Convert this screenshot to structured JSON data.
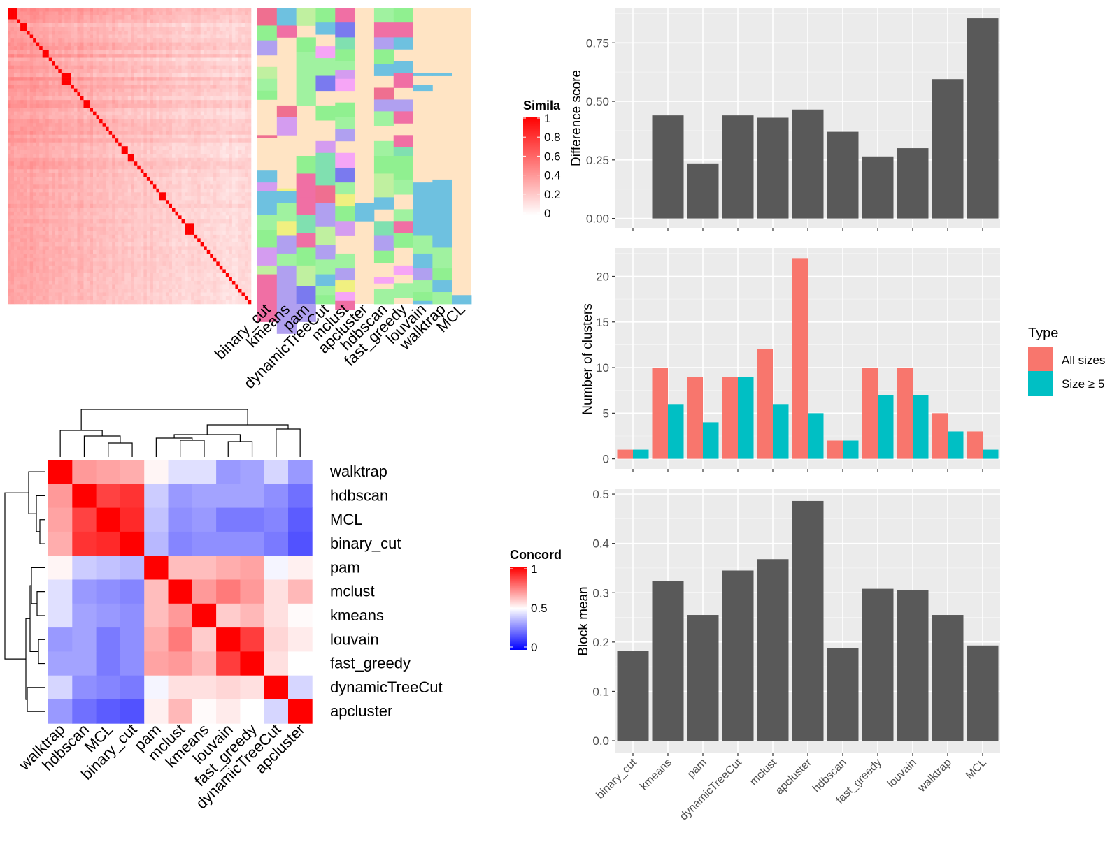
{
  "colors": {
    "panel_bg": "#ebebeb",
    "bar_dark": "#595959",
    "all_sizes": "#f8766d",
    "size_ge5": "#00bfc4",
    "heat_red": "#ff0000",
    "heat_blue": "#0000ff",
    "annot_bg": "#ffe4c4"
  },
  "similarity_heatmap": {
    "legend_title": "Simila",
    "legend_ticks": [
      "1",
      "0.8",
      "0.6",
      "0.4",
      "0.2",
      "0"
    ],
    "diagonal_block_sizes": [
      3,
      1,
      2,
      1,
      1,
      1,
      1,
      1,
      2,
      1,
      1,
      1,
      1,
      3,
      1,
      1,
      1,
      1,
      2,
      1,
      1,
      1,
      1,
      1,
      1,
      1,
      1,
      1,
      1,
      2,
      2,
      1,
      1,
      1,
      1,
      1,
      1,
      1,
      1,
      2,
      1,
      1,
      1,
      1,
      1,
      1,
      3,
      1,
      1,
      1,
      1,
      1,
      1,
      1,
      1,
      1,
      1,
      1,
      1,
      1,
      1,
      1,
      1,
      1,
      1
    ],
    "annotation_columns": [
      "binary_cut",
      "kmeans",
      "pam",
      "dynamicTreeCut",
      "mclust",
      "apcluster",
      "hdbscan",
      "fast_greedy",
      "louvain",
      "walktrap",
      "MCL"
    ]
  },
  "concordance_heatmap": {
    "legend_title": "Concord",
    "legend_ticks": [
      "1",
      "0.5",
      "0"
    ],
    "labels": [
      "walktrap",
      "hdbscan",
      "MCL",
      "binary_cut",
      "pam",
      "mclust",
      "kmeans",
      "louvain",
      "fast_greedy",
      "dynamicTreeCut",
      "apcluster"
    ],
    "matrix": [
      [
        1.0,
        0.7,
        0.68,
        0.66,
        0.52,
        0.44,
        0.44,
        0.3,
        0.32,
        0.42,
        0.3
      ],
      [
        0.7,
        1.0,
        0.87,
        0.9,
        0.4,
        0.3,
        0.32,
        0.32,
        0.32,
        0.28,
        0.22
      ],
      [
        0.68,
        0.87,
        1.0,
        0.92,
        0.38,
        0.28,
        0.3,
        0.24,
        0.24,
        0.26,
        0.18
      ],
      [
        0.66,
        0.9,
        0.92,
        1.0,
        0.36,
        0.26,
        0.28,
        0.28,
        0.28,
        0.24,
        0.16
      ],
      [
        0.52,
        0.4,
        0.38,
        0.36,
        1.0,
        0.63,
        0.63,
        0.66,
        0.68,
        0.48,
        0.53
      ],
      [
        0.44,
        0.3,
        0.28,
        0.26,
        0.63,
        1.0,
        0.7,
        0.76,
        0.7,
        0.56,
        0.64
      ],
      [
        0.44,
        0.32,
        0.3,
        0.28,
        0.63,
        0.7,
        1.0,
        0.6,
        0.64,
        0.56,
        0.51
      ],
      [
        0.3,
        0.32,
        0.24,
        0.28,
        0.66,
        0.76,
        0.6,
        1.0,
        0.88,
        0.58,
        0.54
      ],
      [
        0.32,
        0.32,
        0.24,
        0.28,
        0.68,
        0.7,
        0.64,
        0.88,
        1.0,
        0.56,
        0.5
      ],
      [
        0.42,
        0.28,
        0.26,
        0.24,
        0.48,
        0.56,
        0.56,
        0.58,
        0.56,
        1.0,
        0.42
      ],
      [
        0.3,
        0.22,
        0.18,
        0.16,
        0.53,
        0.64,
        0.51,
        0.54,
        0.5,
        0.42,
        1.0
      ]
    ]
  },
  "chart_data": [
    {
      "type": "bar",
      "categories": [
        "binary_cut",
        "kmeans",
        "pam",
        "dynamicTreeCut",
        "mclust",
        "apcluster",
        "hdbscan",
        "fast_greedy",
        "louvain",
        "walktrap",
        "MCL"
      ],
      "values": [
        0,
        0.44,
        0.235,
        0.44,
        0.43,
        0.465,
        0.37,
        0.265,
        0.3,
        0.595,
        0.855
      ],
      "ylabel": "Difference score",
      "yticks": [
        0,
        0.25,
        0.5,
        0.75
      ],
      "ytick_labels": [
        "0.00",
        "0.25",
        "0.50",
        "0.75"
      ],
      "ylim": [
        -0.04,
        0.9
      ],
      "grid": true
    },
    {
      "type": "bar",
      "categories": [
        "binary_cut",
        "kmeans",
        "pam",
        "dynamicTreeCut",
        "mclust",
        "apcluster",
        "hdbscan",
        "fast_greedy",
        "louvain",
        "walktrap",
        "MCL"
      ],
      "series": [
        {
          "name": "All sizes",
          "values": [
            1,
            10,
            9,
            9,
            12,
            22,
            2,
            10,
            10,
            5,
            3
          ]
        },
        {
          "name": "Size ≥ 5",
          "values": [
            1,
            6,
            4,
            9,
            6,
            5,
            2,
            7,
            7,
            3,
            1
          ]
        }
      ],
      "ylabel": "Number of clusters",
      "yticks": [
        0,
        5,
        10,
        15,
        20
      ],
      "ytick_labels": [
        "0",
        "5",
        "10",
        "15",
        "20"
      ],
      "ylim": [
        -1.1,
        23.1
      ],
      "legend_title": "Type",
      "legend_position": "right",
      "grid": true
    },
    {
      "type": "bar",
      "categories": [
        "binary_cut",
        "kmeans",
        "pam",
        "dynamicTreeCut",
        "mclust",
        "apcluster",
        "hdbscan",
        "fast_greedy",
        "louvain",
        "walktrap",
        "MCL"
      ],
      "values": [
        0.182,
        0.324,
        0.255,
        0.345,
        0.368,
        0.486,
        0.188,
        0.308,
        0.306,
        0.255,
        0.193
      ],
      "ylabel": "Block mean",
      "yticks": [
        0,
        0.1,
        0.2,
        0.3,
        0.4,
        0.5
      ],
      "ytick_labels": [
        "0.0",
        "0.1",
        "0.2",
        "0.3",
        "0.4",
        "0.5"
      ],
      "ylim": [
        -0.024,
        0.51
      ],
      "grid": true
    }
  ]
}
